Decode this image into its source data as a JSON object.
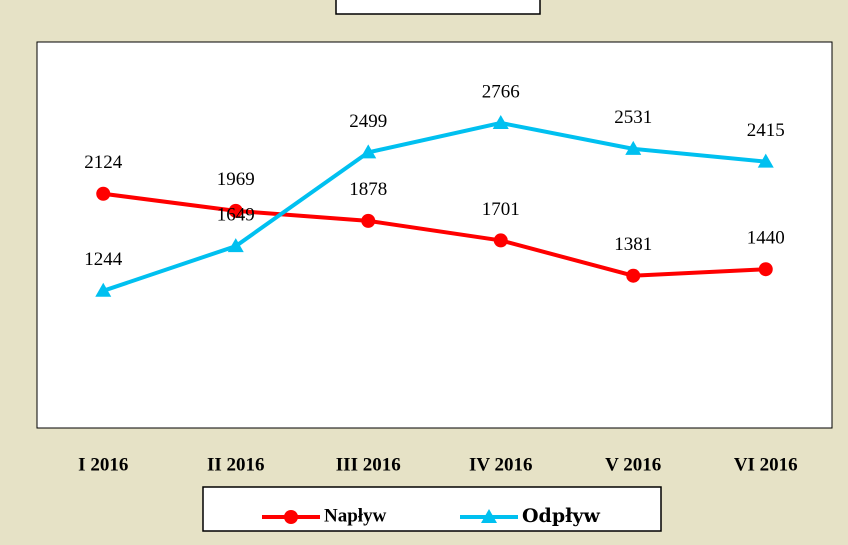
{
  "chart_data": {
    "type": "line",
    "categories": [
      "I 2016",
      "II 2016",
      "III 2016",
      "IV 2016",
      "V 2016",
      "VI 2016"
    ],
    "series": [
      {
        "name": "Napływ",
        "color": "#ff0000",
        "marker": "circle",
        "values": [
          2124,
          1969,
          1878,
          1701,
          1381,
          1440
        ]
      },
      {
        "name": "Odpływ",
        "color": "#00c0f0",
        "marker": "triangle",
        "values": [
          1244,
          1649,
          2499,
          2766,
          2531,
          2415
        ]
      }
    ],
    "ylim": [
      0,
      3500
    ]
  }
}
